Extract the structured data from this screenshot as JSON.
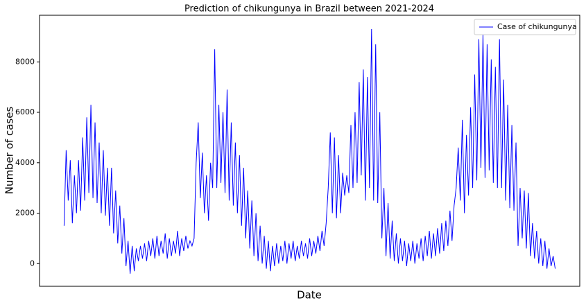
{
  "chart_data": {
    "type": "line",
    "title": "Prediction of chikungunya in Brazil between 2021-2024",
    "xlabel": "Date",
    "ylabel": "Number of cases",
    "ylim": [
      -900,
      9850
    ],
    "yticks": [
      0,
      2000,
      4000,
      6000,
      8000
    ],
    "grid": false,
    "legend": "upper right",
    "series": [
      {
        "name": "Case of chikungunya",
        "color": "#0000ff",
        "values": [
          1500,
          4500,
          2500,
          4100,
          1600,
          3500,
          2000,
          4100,
          2100,
          5000,
          2500,
          5800,
          2800,
          6300,
          2600,
          5600,
          2400,
          4800,
          2000,
          4500,
          1900,
          3800,
          1500,
          3800,
          1200,
          2900,
          800,
          2300,
          400,
          1800,
          -100,
          900,
          -400,
          700,
          -300,
          600,
          100,
          700,
          200,
          800,
          100,
          900,
          300,
          1000,
          200,
          1100,
          300,
          900,
          400,
          1200,
          200,
          1000,
          300,
          900,
          400,
          1300,
          300,
          1000,
          500,
          1100,
          600,
          900,
          700,
          1000,
          4000,
          5600,
          2600,
          4400,
          2000,
          3500,
          1700,
          4000,
          3000,
          8500,
          3000,
          6300,
          3200,
          6000,
          2800,
          6900,
          2500,
          5600,
          2300,
          4800,
          2000,
          4300,
          1500,
          3800,
          1000,
          2900,
          600,
          2500,
          300,
          2000,
          100,
          1500,
          0,
          1100,
          -200,
          900,
          -300,
          700,
          -100,
          800,
          0,
          700,
          100,
          900,
          0,
          800,
          200,
          900,
          100,
          700,
          200,
          900,
          300,
          800,
          200,
          1000,
          300,
          900,
          400,
          1100,
          500,
          1300,
          700,
          1600,
          3000,
          5200,
          2000,
          5000,
          1800,
          4300,
          2000,
          3600,
          2700,
          3500,
          2800,
          5500,
          3000,
          6000,
          3200,
          7200,
          3500,
          7700,
          2500,
          7400,
          3000,
          9300,
          2500,
          8700,
          2400,
          6000,
          1000,
          3000,
          300,
          2400,
          200,
          1700,
          100,
          1200,
          0,
          1000,
          100,
          900,
          -100,
          800,
          100,
          900,
          0,
          800,
          200,
          1000,
          100,
          1100,
          300,
          1300,
          200,
          1200,
          300,
          1400,
          400,
          1600,
          500,
          1700,
          700,
          2100,
          900,
          2300,
          3000,
          4600,
          2500,
          5700,
          2000,
          5100,
          2700,
          6200,
          3000,
          7500,
          3300,
          8900,
          3800,
          9100,
          3400,
          8700,
          3700,
          8100,
          3200,
          7800,
          3000,
          8900,
          3000,
          7300,
          2500,
          6300,
          2200,
          5500,
          2100,
          4800,
          700,
          3000,
          1000,
          2900,
          600,
          2800,
          300,
          1600,
          200,
          1300,
          0,
          1000,
          -100,
          900,
          -200,
          600,
          -100,
          300,
          -200
        ]
      }
    ]
  }
}
